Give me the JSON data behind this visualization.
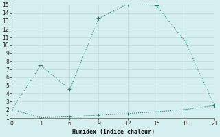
{
  "xlabel": "Humidex (Indice chaleur)",
  "x": [
    0,
    3,
    6,
    9,
    12,
    15,
    18,
    21
  ],
  "line1_y": [
    2,
    7.5,
    4.5,
    13.3,
    15.1,
    14.9,
    10.4,
    2.5
  ],
  "line2_y": [
    2,
    1.0,
    1.1,
    1.3,
    1.5,
    1.7,
    2.0,
    2.5
  ],
  "line_color": "#2e7d6e",
  "bg_color": "#d4efed",
  "grid_color": "#b8dbd9",
  "ylim_min": 1,
  "ylim_max": 15,
  "xlim_min": 0,
  "xlim_max": 21,
  "yticks": [
    1,
    2,
    3,
    4,
    5,
    6,
    7,
    8,
    9,
    10,
    11,
    12,
    13,
    14,
    15
  ],
  "xticks": [
    0,
    3,
    6,
    9,
    12,
    15,
    18,
    21
  ],
  "tick_fontsize": 5.5,
  "xlabel_fontsize": 6,
  "linewidth": 0.8,
  "markersize": 3
}
